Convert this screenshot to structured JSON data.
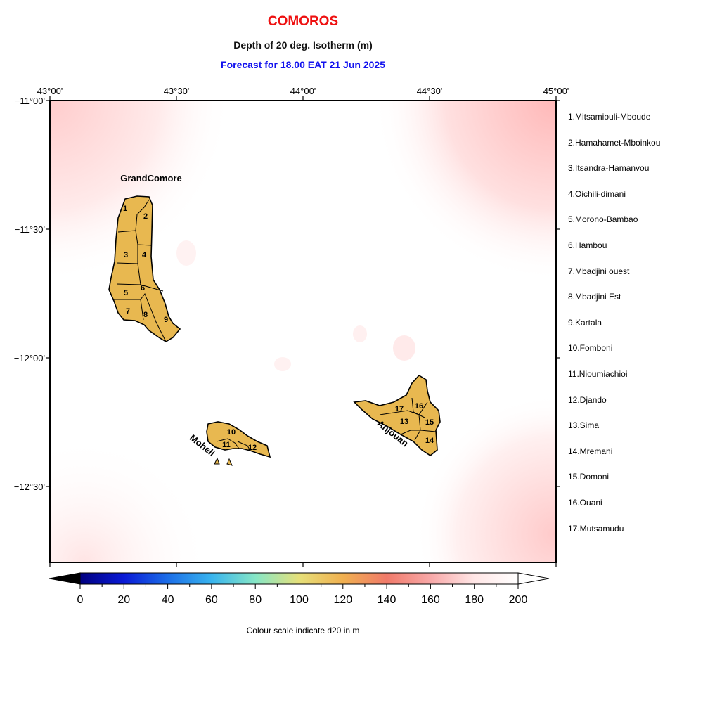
{
  "header": {
    "country": "COMOROS",
    "variable": "Depth of 20 deg. Isotherm (m)",
    "forecast": "Forecast for  18.00 EAT 21 Jun 2025"
  },
  "map": {
    "lon_ticks": [
      "43°00'",
      "43°30'",
      "44°00'",
      "44°30'",
      "45°00'"
    ],
    "lat_ticks": [
      "−11°00'",
      "−11°30'",
      "−12°00'",
      "−12°30'"
    ],
    "island_labels": [
      "GrandComore",
      "Moheli",
      "Anjouan"
    ],
    "region_numbers": [
      "1",
      "2",
      "3",
      "4",
      "5",
      "6",
      "7",
      "8",
      "9",
      "10",
      "11",
      "12",
      "13",
      "14",
      "15",
      "16",
      "17"
    ]
  },
  "districts": [
    "1.Mitsamiouli-Mboude",
    "2.Hamahamet-Mboinkou",
    "3.Itsandra-Hamanvou",
    "4.Oichili-dimani",
    "5.Morono-Bambao",
    "6.Hambou",
    "7.Mbadjini ouest",
    "8.Mbadjini Est",
    "9.Kartala",
    "10.Fomboni",
    "11.Nioumiachioi",
    "12.Djando",
    "13.Sima",
    "14.Mremani",
    "15.Domoni",
    "16.Ouani",
    "17.Mutsamudu"
  ],
  "colorbar": {
    "ticks": [
      "0",
      "20",
      "40",
      "60",
      "80",
      "100",
      "120",
      "140",
      "160",
      "180",
      "200"
    ],
    "label": "Colour scale indicate d20 in m",
    "stops": [
      "#000080",
      "#0a1ad6",
      "#1c6ee8",
      "#38b4ee",
      "#86e6c6",
      "#e6e07a",
      "#f0b050",
      "#f07a6a",
      "#f8a8a8",
      "#ffe6e6",
      "#ffffff"
    ]
  },
  "colors": {
    "land": "#e8b850",
    "title": "#ee1111",
    "forecast": "#1111ee"
  }
}
